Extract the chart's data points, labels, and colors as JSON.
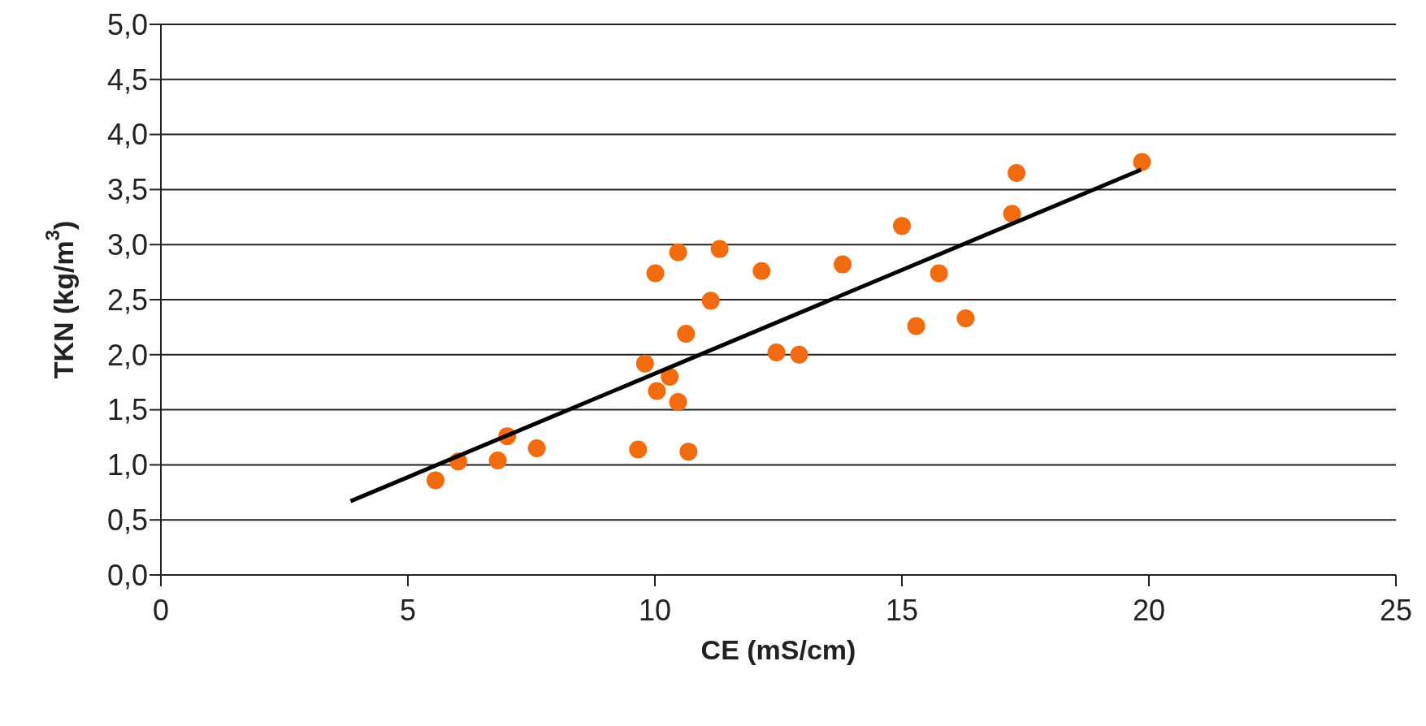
{
  "chart_data": {
    "type": "scatter",
    "xlabel": "CE (mS/cm)",
    "ylabel": "TKN (kg/m$^{3}$)",
    "xlim": [
      0,
      25
    ],
    "xticks": [
      0,
      5,
      10,
      15,
      20,
      25
    ],
    "ylim": [
      0,
      5
    ],
    "yticks": [
      {
        "value": 0,
        "label": "0,0"
      },
      {
        "value": 0.5,
        "label": "0,5"
      },
      {
        "value": 1,
        "label": "1,0"
      },
      {
        "value": 1.5,
        "label": "1,5"
      },
      {
        "value": 2,
        "label": "2,0"
      },
      {
        "value": 2.5,
        "label": "2,5"
      },
      {
        "value": 3,
        "label": "3,0"
      },
      {
        "value": 3.5,
        "label": "3,5"
      },
      {
        "value": 4,
        "label": "4,0"
      },
      {
        "value": 4.5,
        "label": "4,5"
      },
      {
        "value": 5,
        "label": "5,0"
      }
    ],
    "grid": "y",
    "marker": "circle",
    "series": [
      {
        "color": "#f26b0f",
        "x": [
          5.56,
          6.02,
          6.82,
          7.01,
          7.61,
          9.66,
          10.68,
          9.8,
          10.3,
          10.04,
          10.47,
          10.63,
          11.13,
          10.01,
          10.47,
          11.31,
          12.16,
          12.46,
          12.92,
          13.8,
          15.0,
          15.29,
          15.75,
          16.29,
          17.23,
          17.32,
          19.86
        ],
        "values": [
          0.86,
          1.03,
          1.04,
          1.26,
          1.15,
          1.14,
          1.12,
          1.92,
          1.8,
          1.67,
          1.57,
          2.19,
          2.49,
          2.74,
          2.93,
          2.96,
          2.76,
          2.02,
          2.0,
          2.82,
          3.17,
          2.26,
          2.74,
          2.33,
          3.28,
          3.65,
          3.75
        ]
      },
      {
        "type": "line",
        "color": "#000000",
        "marker": "none",
        "line_style": "solid",
        "x": [
          3.84,
          19.84
        ],
        "values": [
          0.67,
          3.68
        ]
      }
    ]
  }
}
